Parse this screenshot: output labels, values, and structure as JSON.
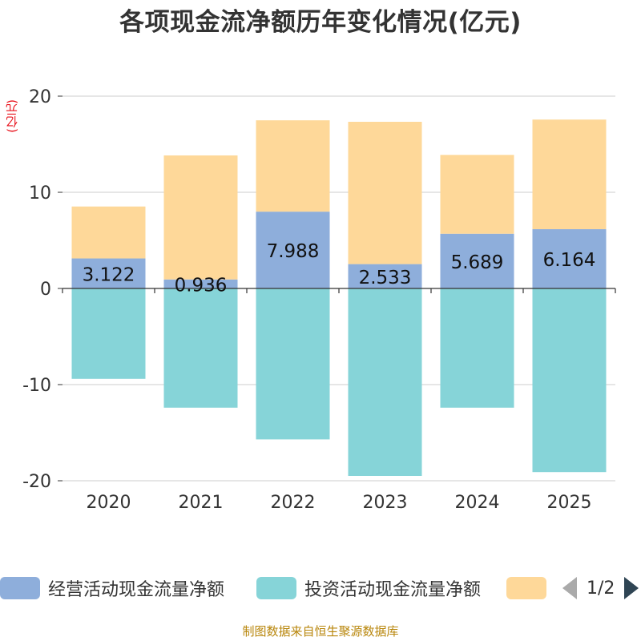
{
  "chart_data": {
    "type": "bar",
    "stacked": true,
    "title": "各项现金流净额历年变化情况(亿元)",
    "ylabel": "(亿元)",
    "xlabel": "",
    "categories": [
      "2020",
      "2021",
      "2022",
      "2023",
      "2024",
      "2025"
    ],
    "ylim": [
      -20,
      20
    ],
    "yticks": [
      20,
      10,
      0,
      -10,
      -20
    ],
    "ytick_labels": [
      "20",
      "10",
      "0",
      "-10",
      "-20"
    ],
    "grid": true,
    "series": [
      {
        "name": "经营活动现金流量净额",
        "color": "#8eaedb",
        "values": [
          3.122,
          0.936,
          7.988,
          2.533,
          5.689,
          6.164
        ],
        "labels": [
          "3.122",
          "0.936",
          "7.988",
          "2.533",
          "5.689",
          "6.164"
        ]
      },
      {
        "name": "投资活动现金流量净额",
        "color": "#86d4d8",
        "values": [
          -9.4,
          -12.4,
          -15.7,
          -19.5,
          -12.4,
          -19.1
        ]
      },
      {
        "name": "",
        "color": "#fed899",
        "values": [
          5.4,
          12.9,
          9.5,
          14.8,
          8.2,
          11.4
        ]
      }
    ]
  },
  "legend": {
    "items": [
      {
        "label": "经营活动现金流量净额",
        "color": "#8eaedb"
      },
      {
        "label": "投资活动现金流量净额",
        "color": "#86d4d8"
      },
      {
        "label": "",
        "color": "#fed899"
      }
    ],
    "page_text": "1/2"
  },
  "source_text": "制图数据来自恒生聚源数据库"
}
